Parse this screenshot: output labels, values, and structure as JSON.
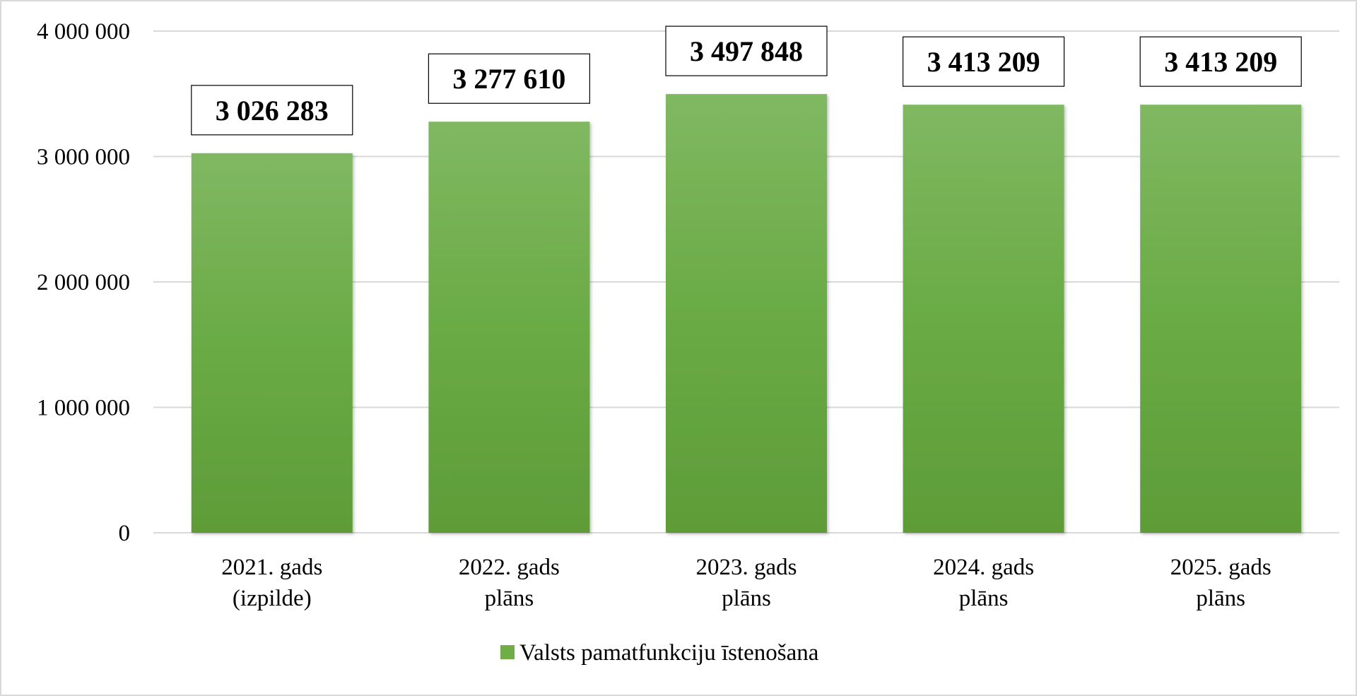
{
  "chart_data": {
    "type": "bar",
    "categories": [
      [
        "2021. gads",
        "(izpilde)"
      ],
      [
        "2022. gads",
        "plāns"
      ],
      [
        "2023. gads",
        "plāns"
      ],
      [
        "2024. gads",
        "plāns"
      ],
      [
        "2025. gads",
        "plāns"
      ]
    ],
    "series": [
      {
        "name": "Valsts pamatfunkciju īstenošana",
        "values": [
          3026283,
          3277610,
          3497848,
          3413209,
          3413209
        ],
        "color": "#70ad47"
      }
    ],
    "data_labels": [
      "3 026 283",
      "3 277 610",
      "3 497 848",
      "3 413 209",
      "3 413 209"
    ],
    "y_ticks": [
      {
        "value": 0,
        "label": "0"
      },
      {
        "value": 1000000,
        "label": "1 000 000"
      },
      {
        "value": 2000000,
        "label": "2 000 000"
      },
      {
        "value": 3000000,
        "label": "3 000 000"
      },
      {
        "value": 4000000,
        "label": "4 000 000"
      }
    ],
    "ylim": [
      0,
      4000000
    ],
    "grid": true,
    "legend_position": "bottom"
  }
}
